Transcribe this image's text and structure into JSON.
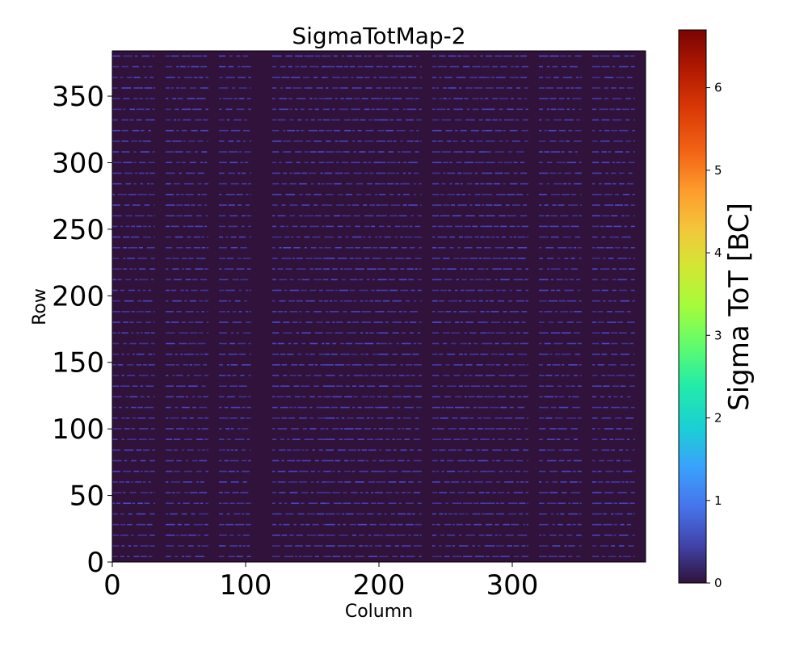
{
  "chart_data": {
    "type": "heatmap",
    "title": "SigmaTotMap-2",
    "xlabel": "Column",
    "ylabel": "Row",
    "xlim": [
      0,
      400
    ],
    "ylim": [
      0,
      384
    ],
    "x_ticks": [
      0,
      100,
      200,
      300
    ],
    "y_ticks": [
      0,
      50,
      100,
      150,
      200,
      250,
      300,
      350
    ],
    "x_tick_labels": [
      "0",
      "100",
      "200",
      "300"
    ],
    "y_tick_labels": [
      "0",
      "50",
      "100",
      "150",
      "200",
      "250",
      "300",
      "350"
    ],
    "colorbar": {
      "label": "Sigma ToT [BC]",
      "range": [
        0,
        6.7
      ],
      "ticks": [
        0,
        1,
        2,
        3,
        4,
        5,
        6
      ],
      "tick_labels": [
        "0",
        "1",
        "2",
        "3",
        "4",
        "5",
        "6"
      ],
      "colormap": "turbo"
    },
    "background_value": 0,
    "stripe_value": 0.5,
    "column_blocks": [
      [
        0,
        32
      ],
      [
        40,
        72
      ],
      [
        80,
        104
      ],
      [
        120,
        160
      ],
      [
        160,
        200
      ],
      [
        200,
        232
      ],
      [
        240,
        280
      ],
      [
        280,
        312
      ],
      [
        320,
        352
      ],
      [
        360,
        392
      ]
    ],
    "row_period": 8,
    "description_values": "Mostly zero; sparse horizontal stripes of ~0.5 BC every 8 rows within column blocks"
  },
  "colors": {
    "background_cell": "#30123b",
    "stripe_cell": "#4a4bcc"
  }
}
